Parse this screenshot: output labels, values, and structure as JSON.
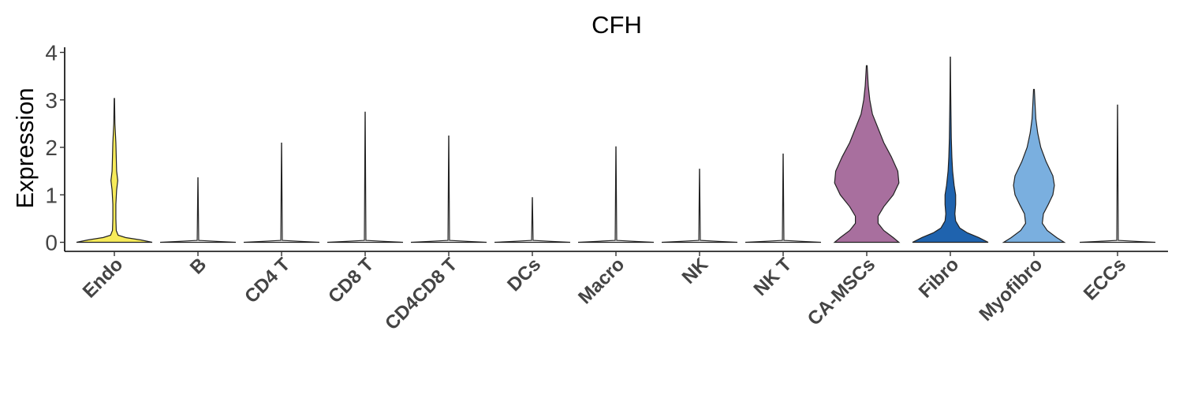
{
  "chart_data": {
    "type": "violin",
    "title": "CFH",
    "ylabel": "Expression",
    "xlabel": "",
    "ylim": [
      -0.18,
      4.1
    ],
    "yticks": [
      0,
      1,
      2,
      3,
      4
    ],
    "categories": [
      "Endo",
      "B",
      "CD4 T",
      "CD8 T",
      "CD4CD8 T",
      "DCs",
      "Macro",
      "NK",
      "NK T",
      "CA-MSCs",
      "Fibro",
      "Myofibro",
      "ECCs"
    ],
    "colors": [
      "#F7EB5A",
      "#FFFFFF",
      "#FFFFFF",
      "#FFFFFF",
      "#FFFFFF",
      "#FFFFFF",
      "#FFFFFF",
      "#FFFFFF",
      "#FFFFFF",
      "#A86F9E",
      "#1F63AE",
      "#7AAFDF",
      "#FFFFFF"
    ],
    "max_values": [
      3.03,
      1.36,
      2.09,
      2.74,
      2.24,
      0.94,
      2.01,
      1.54,
      1.86,
      3.72,
      3.9,
      3.22,
      2.89
    ],
    "violins": [
      {
        "name": "Endo",
        "profile": [
          [
            0,
            1
          ],
          [
            0.05,
            0.7
          ],
          [
            0.1,
            0.3
          ],
          [
            0.15,
            0.1
          ],
          [
            0.25,
            0.05
          ],
          [
            0.5,
            0.04
          ],
          [
            0.8,
            0.04
          ],
          [
            1.1,
            0.06
          ],
          [
            1.3,
            0.09
          ],
          [
            1.5,
            0.06
          ],
          [
            1.8,
            0.05
          ],
          [
            2.1,
            0.04
          ],
          [
            2.5,
            0.015
          ],
          [
            3.03,
            0.005
          ]
        ]
      },
      {
        "name": "B",
        "profile": [
          [
            0,
            1
          ],
          [
            0.02,
            0.5
          ],
          [
            0.04,
            0.02
          ],
          [
            1.36,
            0.002
          ]
        ]
      },
      {
        "name": "CD4 T",
        "profile": [
          [
            0,
            1
          ],
          [
            0.02,
            0.5
          ],
          [
            0.04,
            0.02
          ],
          [
            2.09,
            0.002
          ]
        ]
      },
      {
        "name": "CD8 T",
        "profile": [
          [
            0,
            1
          ],
          [
            0.02,
            0.5
          ],
          [
            0.04,
            0.02
          ],
          [
            2.74,
            0.002
          ]
        ]
      },
      {
        "name": "CD4CD8 T",
        "profile": [
          [
            0,
            1
          ],
          [
            0.02,
            0.5
          ],
          [
            0.04,
            0.02
          ],
          [
            2.24,
            0.002
          ]
        ]
      },
      {
        "name": "DCs",
        "profile": [
          [
            0,
            1
          ],
          [
            0.02,
            0.5
          ],
          [
            0.04,
            0.02
          ],
          [
            0.94,
            0.002
          ]
        ]
      },
      {
        "name": "Macro",
        "profile": [
          [
            0,
            1
          ],
          [
            0.02,
            0.5
          ],
          [
            0.04,
            0.02
          ],
          [
            2.01,
            0.002
          ]
        ]
      },
      {
        "name": "NK",
        "profile": [
          [
            0,
            1
          ],
          [
            0.02,
            0.5
          ],
          [
            0.04,
            0.02
          ],
          [
            1.54,
            0.002
          ]
        ]
      },
      {
        "name": "NK T",
        "profile": [
          [
            0,
            1
          ],
          [
            0.02,
            0.5
          ],
          [
            0.04,
            0.02
          ],
          [
            1.86,
            0.002
          ]
        ]
      },
      {
        "name": "CA-MSCs",
        "profile": [
          [
            0,
            0.85
          ],
          [
            0.1,
            0.7
          ],
          [
            0.25,
            0.45
          ],
          [
            0.4,
            0.3
          ],
          [
            0.55,
            0.3
          ],
          [
            0.75,
            0.45
          ],
          [
            1.0,
            0.7
          ],
          [
            1.25,
            0.85
          ],
          [
            1.5,
            0.82
          ],
          [
            1.8,
            0.65
          ],
          [
            2.1,
            0.45
          ],
          [
            2.4,
            0.3
          ],
          [
            2.7,
            0.15
          ],
          [
            3.0,
            0.08
          ],
          [
            3.3,
            0.04
          ],
          [
            3.72,
            0.01
          ]
        ]
      },
      {
        "name": "Fibro",
        "profile": [
          [
            0,
            1
          ],
          [
            0.1,
            0.75
          ],
          [
            0.2,
            0.45
          ],
          [
            0.3,
            0.25
          ],
          [
            0.45,
            0.14
          ],
          [
            0.6,
            0.12
          ],
          [
            0.8,
            0.14
          ],
          [
            1.0,
            0.14
          ],
          [
            1.2,
            0.1
          ],
          [
            1.5,
            0.06
          ],
          [
            1.8,
            0.04
          ],
          [
            2.2,
            0.025
          ],
          [
            2.8,
            0.015
          ],
          [
            3.3,
            0.008
          ],
          [
            3.9,
            0.003
          ]
        ]
      },
      {
        "name": "Myofibro",
        "profile": [
          [
            0,
            0.8
          ],
          [
            0.1,
            0.6
          ],
          [
            0.25,
            0.35
          ],
          [
            0.4,
            0.22
          ],
          [
            0.6,
            0.25
          ],
          [
            0.8,
            0.38
          ],
          [
            1.0,
            0.5
          ],
          [
            1.2,
            0.54
          ],
          [
            1.4,
            0.5
          ],
          [
            1.7,
            0.32
          ],
          [
            2.0,
            0.18
          ],
          [
            2.3,
            0.1
          ],
          [
            2.6,
            0.05
          ],
          [
            2.9,
            0.03
          ],
          [
            3.22,
            0.01
          ]
        ]
      },
      {
        "name": "ECCs",
        "profile": [
          [
            0,
            1
          ],
          [
            0.02,
            0.5
          ],
          [
            0.04,
            0.02
          ],
          [
            2.89,
            0.002
          ]
        ]
      }
    ]
  }
}
